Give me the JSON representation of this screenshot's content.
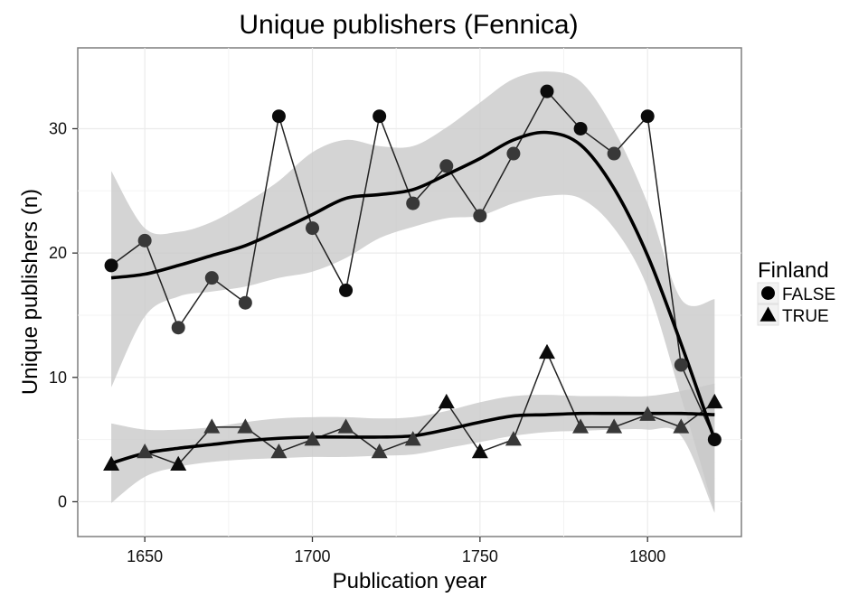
{
  "chart_data": {
    "type": "line",
    "title": "Unique publishers (Fennica)",
    "xlabel": "Publication year",
    "ylabel": "Unique publishers (n)",
    "xlim": [
      1630,
      1828
    ],
    "ylim": [
      -2.8,
      36.5
    ],
    "x_ticks": [
      1650,
      1700,
      1750,
      1800
    ],
    "y_ticks": [
      0,
      10,
      20,
      30
    ],
    "grid": true,
    "legend": {
      "title": "Finland",
      "position": "right"
    },
    "series": [
      {
        "name": "FALSE",
        "marker": "circle",
        "x": [
          1640,
          1650,
          1660,
          1670,
          1680,
          1690,
          1700,
          1710,
          1720,
          1730,
          1740,
          1750,
          1760,
          1770,
          1780,
          1790,
          1800,
          1810,
          1820
        ],
        "y": [
          19,
          21,
          14,
          18,
          16,
          31,
          22,
          17,
          31,
          24,
          27,
          23,
          28,
          33,
          30,
          28,
          31,
          11,
          5
        ],
        "smooth": [
          18.0,
          18.3,
          19.0,
          19.8,
          20.6,
          21.8,
          23.1,
          24.4,
          24.7,
          25.1,
          26.3,
          27.6,
          29.1,
          29.7,
          28.7,
          25.2,
          19.8,
          12.7,
          5.0
        ],
        "ci_lower": [
          9.2,
          14.9,
          16.5,
          16.9,
          17.3,
          18.0,
          18.5,
          19.6,
          21.2,
          22.1,
          22.8,
          23.0,
          24.0,
          24.6,
          24.4,
          22.0,
          17.2,
          8.4,
          -0.8
        ],
        "ci_upper": [
          26.6,
          22.0,
          21.7,
          22.5,
          24.0,
          25.8,
          28.1,
          29.1,
          28.6,
          28.6,
          30.1,
          32.1,
          34.0,
          34.6,
          33.8,
          29.9,
          24.0,
          16.3,
          16.3
        ]
      },
      {
        "name": "TRUE",
        "marker": "triangle",
        "x": [
          1640,
          1650,
          1660,
          1670,
          1680,
          1690,
          1700,
          1710,
          1720,
          1730,
          1740,
          1750,
          1760,
          1770,
          1780,
          1790,
          1800,
          1810,
          1820
        ],
        "y": [
          3,
          4,
          3,
          6,
          6,
          4,
          5,
          6,
          4,
          5,
          8,
          4,
          5,
          12,
          6,
          6,
          7,
          6,
          8
        ],
        "smooth": [
          3.1,
          3.9,
          4.3,
          4.6,
          4.9,
          5.1,
          5.2,
          5.2,
          5.2,
          5.3,
          5.8,
          6.4,
          6.9,
          7.0,
          7.1,
          7.1,
          7.1,
          7.1,
          7.0
        ],
        "ci_lower": [
          -0.1,
          2.0,
          2.8,
          3.2,
          3.4,
          3.5,
          3.6,
          3.6,
          3.7,
          3.8,
          4.3,
          4.8,
          5.3,
          5.6,
          5.7,
          5.8,
          5.8,
          5.3,
          -0.9
        ],
        "ci_upper": [
          6.3,
          5.8,
          5.8,
          6.0,
          6.4,
          6.7,
          6.8,
          6.8,
          6.7,
          6.8,
          7.3,
          8.0,
          8.5,
          8.6,
          8.5,
          8.5,
          8.5,
          8.9,
          9.5
        ]
      }
    ]
  }
}
